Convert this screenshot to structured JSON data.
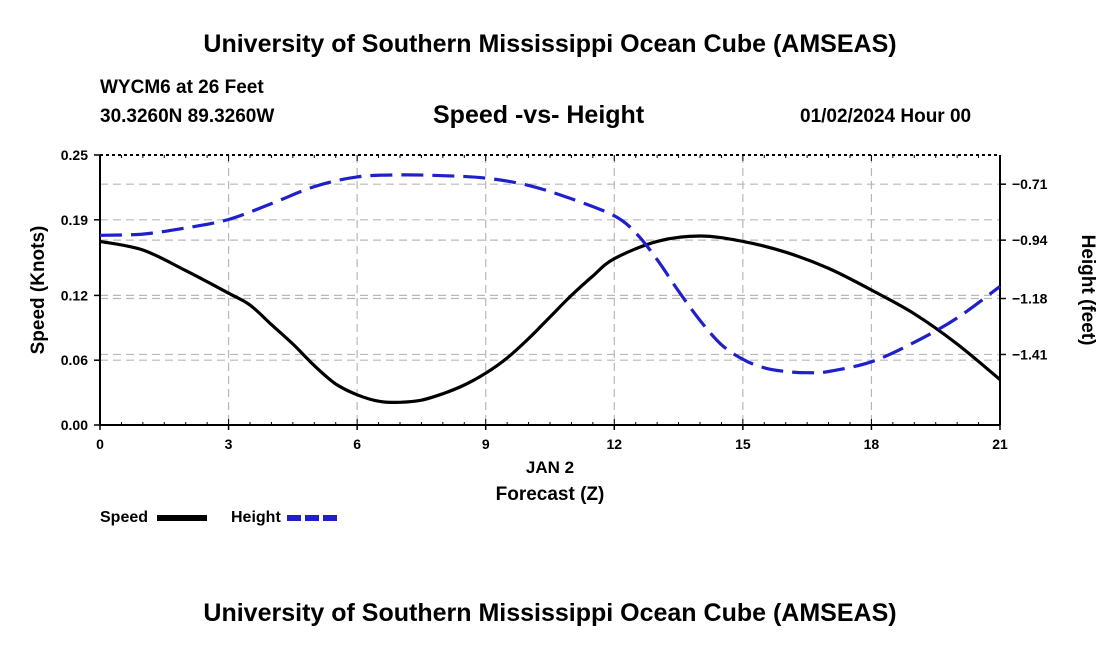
{
  "header": {
    "title": "University of Southern Mississippi Ocean Cube (AMSEAS)",
    "station": "WYCM6 at 26 Feet",
    "coords": "30.3260N  89.3260W",
    "datetime": "01/02/2024 Hour 00"
  },
  "footer": {
    "title": "University of Southern Mississippi Ocean Cube (AMSEAS)"
  },
  "legend": {
    "speed": "Speed",
    "height": "Height"
  },
  "colors": {
    "speed": "#000000",
    "height": "#1f1fcc",
    "grid": "#b8b8b8"
  },
  "chart_data": {
    "type": "line",
    "title": "Speed -vs- Height",
    "xlabel": "Forecast (Z)",
    "xsublabel": "JAN 2",
    "ylabel": "Speed (Knots)",
    "y2label": "Height (feet)",
    "xlim": [
      0,
      21
    ],
    "ylim": [
      0,
      0.25
    ],
    "y2lim": [
      -1.7,
      -0.59
    ],
    "x_ticks": [
      0,
      3,
      6,
      9,
      12,
      15,
      18,
      21
    ],
    "x_tick_labels": [
      "0",
      "3",
      "6",
      "9",
      "12",
      "15",
      "18",
      "21"
    ],
    "y_ticks": [
      0,
      0.06,
      0.12,
      0.19,
      0.25
    ],
    "y_tick_labels": [
      "0.00",
      "0.06",
      "0.12",
      "0.19",
      "0.25"
    ],
    "y2_ticks": [
      -0.71,
      -0.94,
      -1.18,
      -1.41
    ],
    "y2_tick_labels": [
      "-0.71",
      "-0.94",
      "-1.18",
      "-1.41"
    ],
    "series": [
      {
        "name": "Speed",
        "axis": "left",
        "style": "solid",
        "x": [
          0,
          1,
          2,
          3,
          3.5,
          4,
          4.5,
          5,
          5.5,
          6,
          6.5,
          7,
          7.5,
          8,
          8.5,
          9,
          9.5,
          10,
          10.5,
          11,
          11.5,
          12,
          13,
          14,
          15,
          16,
          17,
          18,
          19,
          20,
          21
        ],
        "values": [
          0.17,
          0.162,
          0.143,
          0.122,
          0.111,
          0.093,
          0.075,
          0.055,
          0.038,
          0.028,
          0.022,
          0.021,
          0.023,
          0.029,
          0.037,
          0.048,
          0.062,
          0.08,
          0.1,
          0.12,
          0.138,
          0.154,
          0.17,
          0.175,
          0.17,
          0.16,
          0.145,
          0.125,
          0.103,
          0.075,
          0.042
        ]
      },
      {
        "name": "Height",
        "axis": "right",
        "style": "dashed",
        "x": [
          0,
          1,
          2,
          3,
          4,
          5,
          6,
          7,
          8,
          9,
          10,
          11,
          12,
          12.5,
          13,
          13.5,
          14,
          14.5,
          15,
          15.5,
          16,
          16.5,
          17,
          18,
          19,
          20,
          21
        ],
        "values": [
          -0.92,
          -0.915,
          -0.89,
          -0.855,
          -0.79,
          -0.72,
          -0.68,
          -0.672,
          -0.675,
          -0.685,
          -0.715,
          -0.77,
          -0.84,
          -0.91,
          -1.02,
          -1.15,
          -1.27,
          -1.37,
          -1.43,
          -1.465,
          -1.48,
          -1.485,
          -1.48,
          -1.44,
          -1.36,
          -1.26,
          -1.13
        ]
      }
    ]
  }
}
